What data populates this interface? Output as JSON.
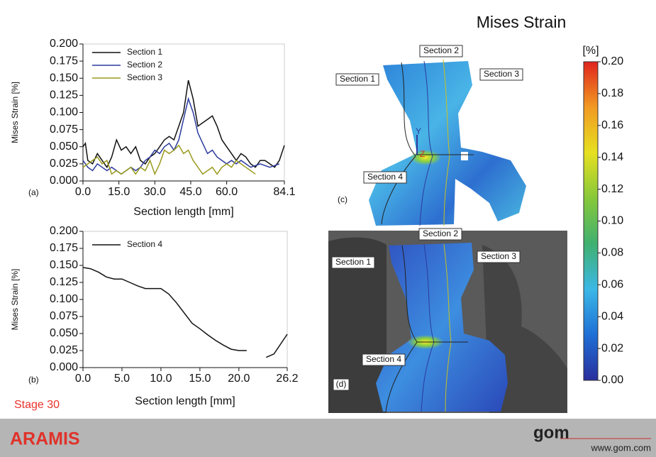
{
  "title": "Mises Strain",
  "chart_data": [
    {
      "type": "line",
      "panel": "(a)",
      "x_label": "Section length [mm]",
      "y_label": "Mises Strain [%]",
      "xlim": [
        0,
        84.1
      ],
      "ylim": [
        0,
        0.2
      ],
      "xticks": [
        {
          "value": 0,
          "label": "0.0"
        },
        {
          "value": 15,
          "label": "15.0"
        },
        {
          "value": 30,
          "label": "30.0"
        },
        {
          "value": 45,
          "label": "45.0"
        },
        {
          "value": 60,
          "label": "60.0"
        },
        84.1
      ],
      "yticks": [
        {
          "value": 0,
          "label": "0.000"
        },
        0.025,
        {
          "value": 0.05,
          "label": "0.050"
        },
        0.075,
        {
          "value": 0.1,
          "label": "0.100"
        },
        0.125,
        {
          "value": 0.15,
          "label": "0.150"
        },
        0.175,
        {
          "value": 0.2,
          "label": "0.200"
        }
      ],
      "series": [
        {
          "name": "Section 1",
          "color": "#111111",
          "x": [
            0,
            1,
            2,
            4,
            6,
            8,
            10,
            12,
            14,
            16,
            18,
            20,
            22,
            24,
            26,
            28,
            30,
            32,
            34,
            36,
            38,
            40,
            42,
            44,
            46,
            48,
            50,
            52,
            54,
            56,
            58,
            60,
            62,
            64,
            66,
            68,
            70,
            72,
            74,
            76,
            78,
            80,
            82,
            84.1
          ],
          "values": [
            0.05,
            0.055,
            0.03,
            0.025,
            0.04,
            0.03,
            0.02,
            0.035,
            0.06,
            0.045,
            0.05,
            0.04,
            0.05,
            0.03,
            0.025,
            0.035,
            0.04,
            0.05,
            0.06,
            0.065,
            0.06,
            0.08,
            0.1,
            0.147,
            0.12,
            0.08,
            0.085,
            0.09,
            0.095,
            0.08,
            0.06,
            0.05,
            0.04,
            0.03,
            0.04,
            0.035,
            0.025,
            0.02,
            0.03,
            0.03,
            0.025,
            0.02,
            0.03,
            0.052
          ]
        },
        {
          "name": "Section 2",
          "color": "#2c3b9e",
          "x": [
            0,
            2,
            4,
            6,
            8,
            10,
            12,
            14,
            16,
            18,
            20,
            22,
            24,
            26,
            28,
            30,
            32,
            34,
            36,
            38,
            40,
            42,
            44,
            46,
            48,
            50,
            52,
            54,
            56,
            58,
            60,
            62,
            64,
            66,
            70,
            74,
            78,
            82
          ],
          "values": [
            0.03,
            0.02,
            0.015,
            0.025,
            0.02,
            0.015,
            0.02,
            0.015,
            0.01,
            0.015,
            0.02,
            0.015,
            0.02,
            0.03,
            0.035,
            0.045,
            0.04,
            0.05,
            0.055,
            0.045,
            0.06,
            0.09,
            0.12,
            0.1,
            0.07,
            0.055,
            0.04,
            0.045,
            0.035,
            0.03,
            0.025,
            0.03,
            0.025,
            0.03,
            0.02,
            0.025,
            0.02,
            0.025
          ]
        },
        {
          "name": "Section 3",
          "color": "#9a9a1e",
          "x": [
            0,
            2,
            4,
            6,
            8,
            10,
            12,
            14,
            16,
            18,
            20,
            22,
            24,
            26,
            28,
            30,
            32,
            34,
            36,
            38,
            40,
            42,
            44,
            46,
            48,
            50,
            52,
            54,
            56,
            58,
            60,
            62,
            64,
            66,
            68,
            70,
            72
          ],
          "values": [
            0.02,
            0.025,
            0.03,
            0.035,
            0.025,
            0.03,
            0.01,
            0.015,
            0.01,
            0.015,
            0.02,
            0.01,
            0.02,
            0.015,
            0.03,
            0.01,
            0.025,
            0.045,
            0.04,
            0.045,
            0.052,
            0.04,
            0.045,
            0.03,
            0.02,
            0.01,
            0.015,
            0.02,
            0.01,
            0.02,
            0.025,
            0.02,
            0.03,
            0.025,
            0.02,
            0.015,
            0.01
          ]
        }
      ]
    },
    {
      "type": "line",
      "panel": "(b)",
      "x_label": "Section length [mm]",
      "y_label": "Mises Strain [%]",
      "xlim": [
        0,
        26.2
      ],
      "ylim": [
        0,
        0.2
      ],
      "xticks": [
        {
          "value": 0,
          "label": "0.0"
        },
        {
          "value": 5,
          "label": "5.0"
        },
        {
          "value": 10,
          "label": "10.0"
        },
        {
          "value": 15,
          "label": "15.0"
        },
        {
          "value": 20,
          "label": "20.0"
        },
        26.2
      ],
      "yticks": [
        {
          "value": 0,
          "label": "0.000"
        },
        0.025,
        {
          "value": 0.05,
          "label": "0.050"
        },
        0.075,
        {
          "value": 0.1,
          "label": "0.100"
        },
        0.125,
        {
          "value": 0.15,
          "label": "0.150"
        },
        0.175,
        {
          "value": 0.2,
          "label": "0.200"
        }
      ],
      "series": [
        {
          "name": "Section 4",
          "color": "#111111",
          "x": [
            0,
            1,
            2,
            3,
            4,
            5,
            6,
            7,
            8,
            10,
            11,
            12,
            13,
            14,
            15,
            16,
            17,
            18,
            19,
            20,
            21,
            22.2,
            23.5,
            24.5,
            26.2
          ],
          "values": [
            0.147,
            0.145,
            0.14,
            0.133,
            0.13,
            0.13,
            0.125,
            0.12,
            0.116,
            0.116,
            0.108,
            0.095,
            0.08,
            0.065,
            0.057,
            0.048,
            0.04,
            0.033,
            0.027,
            0.025,
            0.025,
            null,
            0.015,
            0.02,
            0.049
          ]
        }
      ]
    },
    {
      "type": "colorbar",
      "label": "[%]",
      "ylim": [
        0,
        0.2
      ],
      "colors": [
        "#2a2f9c",
        "#1f6fd6",
        "#3bb8e6",
        "#40b070",
        "#86c83a",
        "#e6e020",
        "#f29a22",
        "#e0241e"
      ],
      "yticks": [
        {
          "value": 0,
          "label": "0.00"
        },
        0.02,
        0.04,
        0.06,
        0.08,
        {
          "value": 0.1,
          "label": "0.10"
        },
        0.12,
        0.14,
        0.16,
        0.18,
        {
          "value": 0.2,
          "label": "0.20"
        }
      ]
    }
  ],
  "maps": [
    {
      "panel": "(c)",
      "sections": [
        "Section 1",
        "Section 2",
        "Section 3",
        "Section 4"
      ],
      "axis_labels": [
        "Y",
        "Z"
      ]
    },
    {
      "panel": "(d)",
      "sections": [
        "Section 1",
        "Section 2",
        "Section 3",
        "Section 4"
      ]
    }
  ],
  "stage": "Stage 30",
  "footer": {
    "brand": "ARAMIS",
    "logo": "gom",
    "url": "www.gom.com"
  }
}
